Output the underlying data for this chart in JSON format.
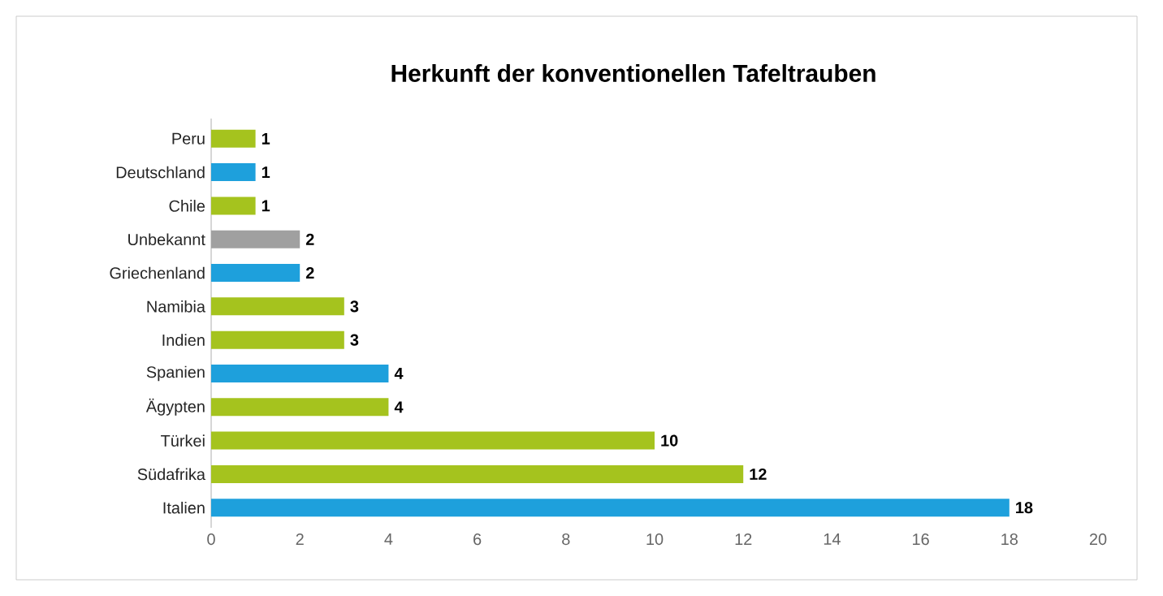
{
  "chart_data": {
    "type": "bar",
    "orientation": "horizontal",
    "title": "Herkunft der konventionellen Tafeltrauben",
    "categories": [
      "Peru",
      "Deutschland",
      "Chile",
      "Unbekannt",
      "Griechenland",
      "Namibia",
      "Indien",
      "Spanien",
      "Ägypten",
      "Türkei",
      "Südafrika",
      "Italien"
    ],
    "values": [
      1,
      1,
      1,
      2,
      2,
      3,
      3,
      4,
      4,
      10,
      12,
      18
    ],
    "colors": [
      "#a5c31e",
      "#1ea0dc",
      "#a5c31e",
      "#a0a0a0",
      "#1ea0dc",
      "#a5c31e",
      "#a5c31e",
      "#1ea0dc",
      "#a5c31e",
      "#a5c31e",
      "#a5c31e",
      "#1ea0dc"
    ],
    "xlim": [
      0,
      20
    ],
    "xticks": [
      0,
      2,
      4,
      6,
      8,
      10,
      12,
      14,
      16,
      18,
      20
    ],
    "data_labels": true
  }
}
